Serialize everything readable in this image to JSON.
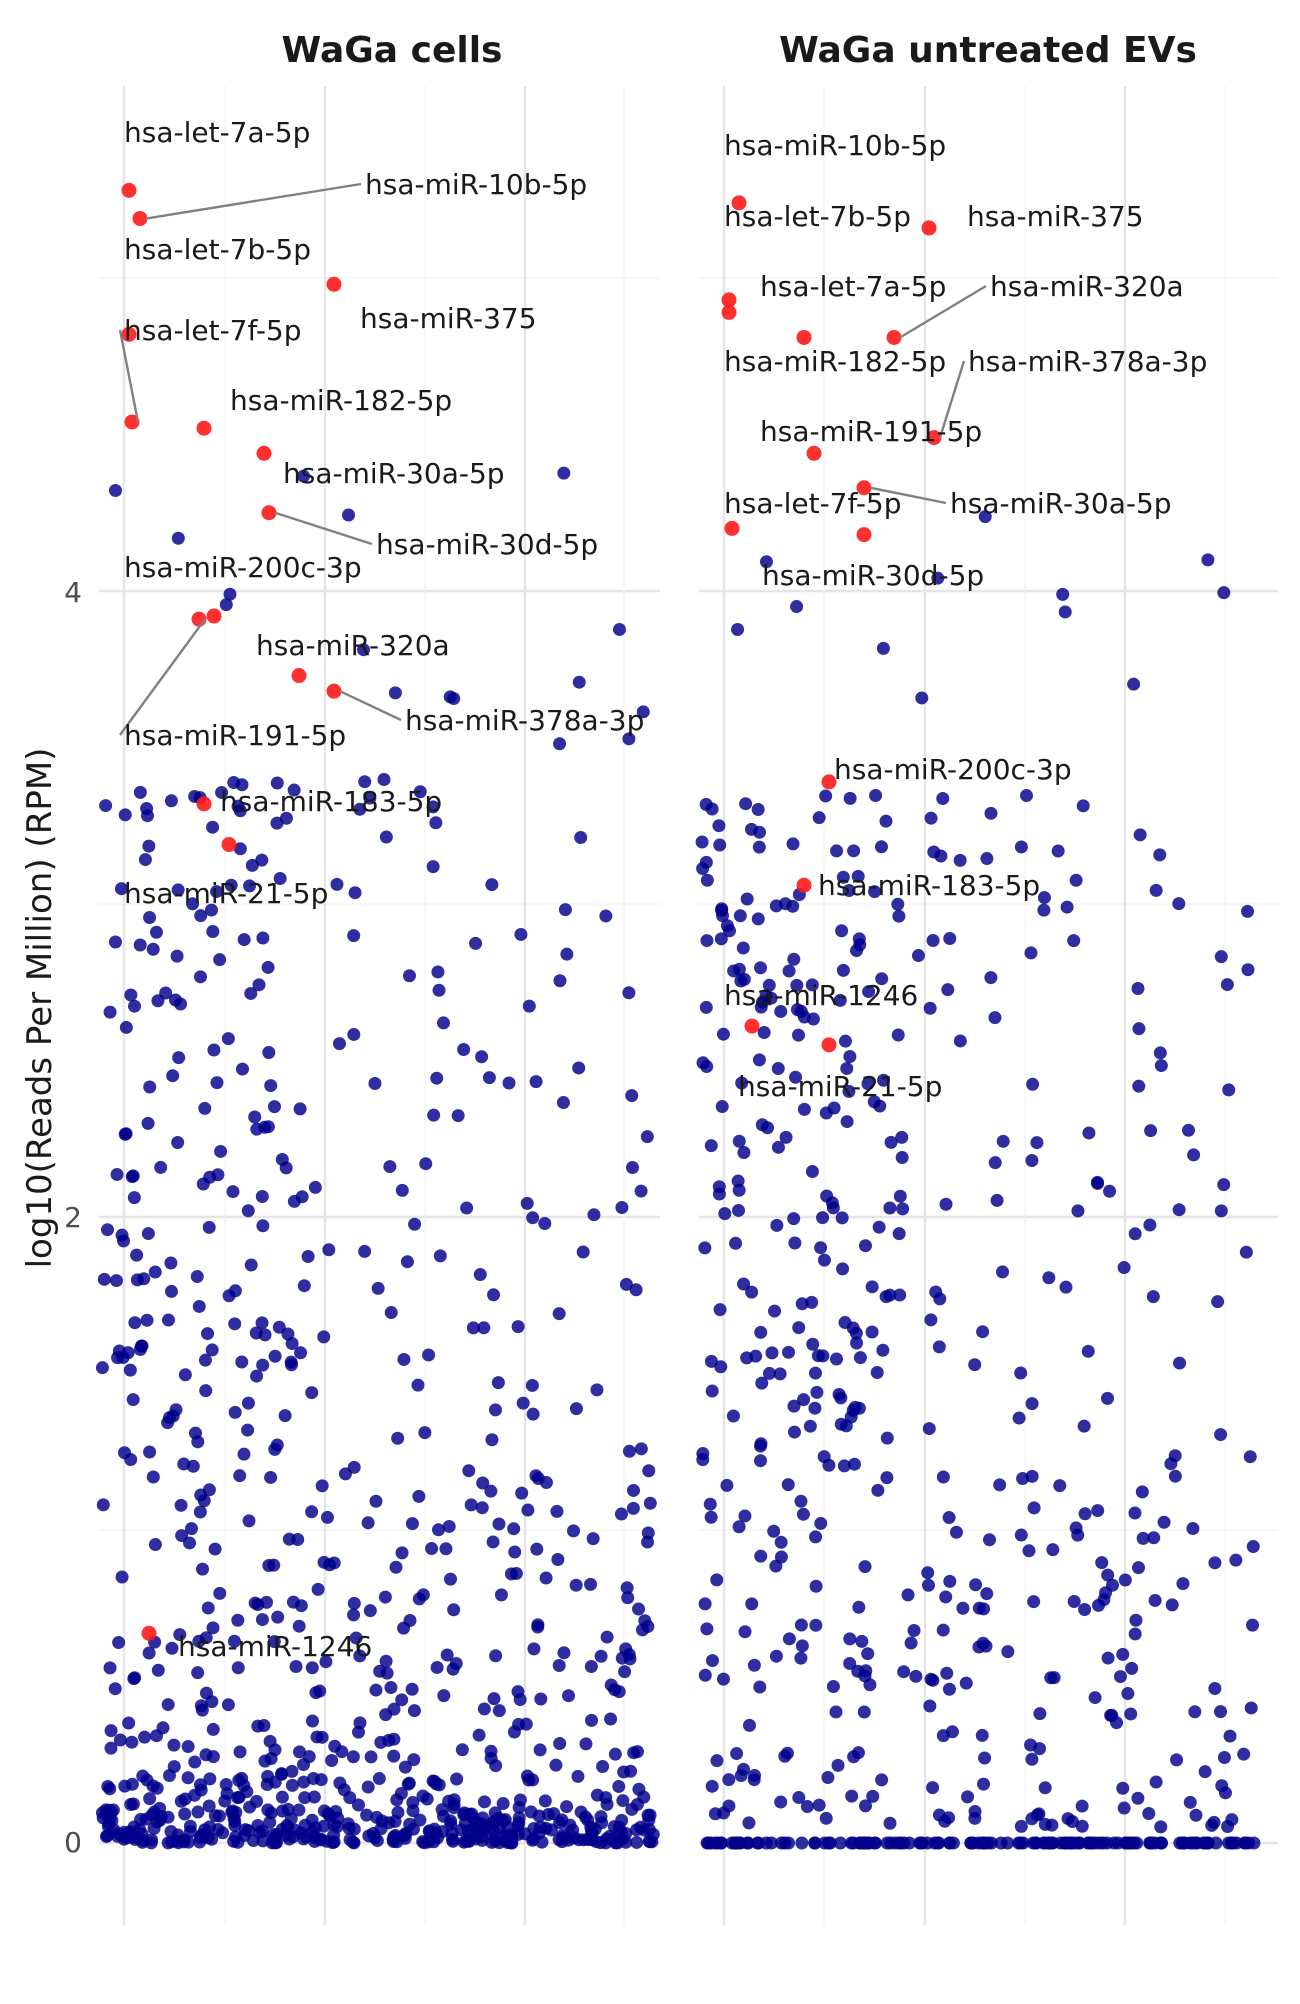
{
  "chart_data": {
    "type": "scatter",
    "ylabel": "log10(Reads Per Million) (RPM)",
    "ylim": [
      -0.25,
      5.25
    ],
    "yticks": [
      0,
      2,
      4
    ],
    "grid": true,
    "legend": "none",
    "colors": {
      "background_mirna": "#00008b",
      "highlighted_mirna": "#ff1a1a",
      "leader_line": "#808080"
    },
    "panels": [
      {
        "title": "WaGa cells",
        "xlim": [
          0,
          54
        ],
        "highlighted": [
          {
            "label": "hsa-let-7a-5p",
            "x": 0.5,
            "y": 5.28
          },
          {
            "label": "hsa-miR-10b-5p",
            "x": 1.6,
            "y": 5.19
          },
          {
            "label": "hsa-let-7b-5p",
            "x": 21.0,
            "y": 4.98
          },
          {
            "label": "hsa-miR-375",
            "x": 0.5,
            "y": 4.82
          },
          {
            "label": "hsa-let-7f-5p",
            "x": 0.8,
            "y": 4.54
          },
          {
            "label": "hsa-miR-182-5p",
            "x": 8.0,
            "y": 4.52
          },
          {
            "label": "hsa-miR-30a-5p",
            "x": 14.0,
            "y": 4.44
          },
          {
            "label": "hsa-miR-30d-5p",
            "x": 14.5,
            "y": 4.25
          },
          {
            "label": "hsa-miR-200c-3p",
            "x": 9.0,
            "y": 3.92
          },
          {
            "label": "hsa-miR-320a",
            "x": 17.5,
            "y": 3.73
          },
          {
            "label": "hsa-miR-378a-3p",
            "x": 21.0,
            "y": 3.68
          },
          {
            "label": "hsa-miR-191-5p",
            "x": 7.5,
            "y": 3.91
          },
          {
            "label": "hsa-miR-183-5p",
            "x": 8.0,
            "y": 3.32
          },
          {
            "label": "hsa-miR-21-5p",
            "x": 10.5,
            "y": 3.19
          },
          {
            "label": "hsa-miR-1246",
            "x": 2.5,
            "y": 0.67
          }
        ]
      },
      {
        "title": "WaGa untreated EVs",
        "xlim": [
          0,
          54
        ],
        "highlighted": [
          {
            "label": "hsa-miR-10b-5p",
            "x": 1.5,
            "y": 5.24
          },
          {
            "label": "hsa-miR-375",
            "x": 20.5,
            "y": 5.16
          },
          {
            "label": "hsa-let-7b-5p",
            "x": 0.5,
            "y": 4.93
          },
          {
            "label": "hsa-let-7a-5p",
            "x": 0.5,
            "y": 4.89
          },
          {
            "label": "hsa-miR-320a",
            "x": 17.0,
            "y": 4.81
          },
          {
            "label": "hsa-miR-182-5p",
            "x": 8.0,
            "y": 4.81
          },
          {
            "label": "hsa-miR-378a-3p",
            "x": 21.0,
            "y": 4.49
          },
          {
            "label": "hsa-miR-191-5p",
            "x": 9.0,
            "y": 4.44
          },
          {
            "label": "hsa-miR-30a-5p",
            "x": 14.0,
            "y": 4.33
          },
          {
            "label": "hsa-let-7f-5p",
            "x": 0.8,
            "y": 4.2
          },
          {
            "label": "hsa-miR-30d-5p",
            "x": 14.0,
            "y": 4.18
          },
          {
            "label": "hsa-miR-200c-3p",
            "x": 10.5,
            "y": 3.39
          },
          {
            "label": "hsa-miR-183-5p",
            "x": 8.0,
            "y": 3.06
          },
          {
            "label": "hsa-miR-1246",
            "x": 2.8,
            "y": 2.61
          },
          {
            "label": "hsa-miR-21-5p",
            "x": 10.5,
            "y": 2.55
          }
        ]
      }
    ]
  }
}
